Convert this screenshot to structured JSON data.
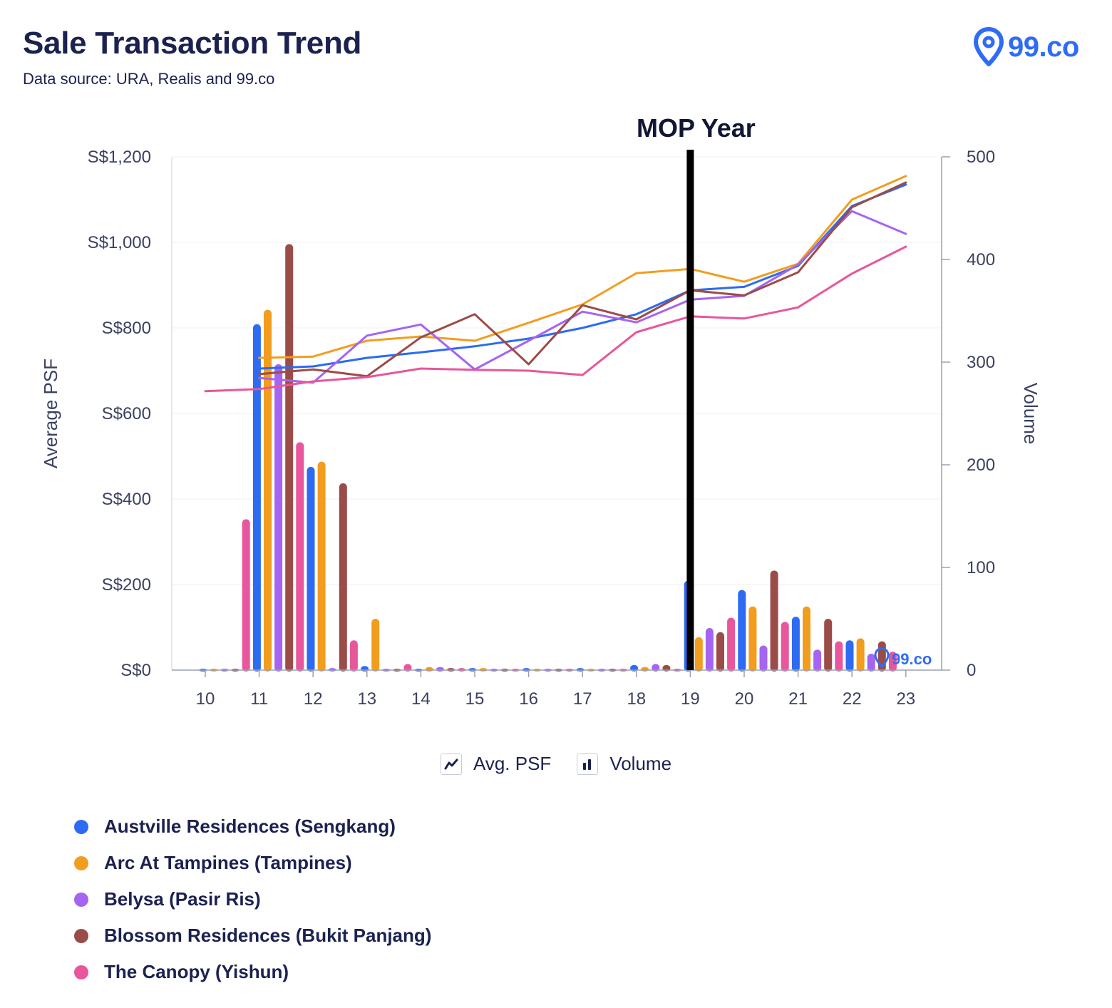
{
  "header": {
    "title": "Sale Transaction Trend",
    "subtitle": "Data source: URA, Realis and 99.co",
    "brand": "99.co",
    "watermark": "99.co"
  },
  "legend": {
    "psf_label": "Avg. PSF",
    "volume_label": "Volume"
  },
  "chart_data": {
    "type": "bar",
    "annotation": "MOP Year",
    "annotation_x": "19",
    "categories": [
      "10",
      "11",
      "12",
      "13",
      "14",
      "15",
      "16",
      "17",
      "18",
      "19",
      "20",
      "21",
      "22",
      "23"
    ],
    "y_left": {
      "label": "Average PSF",
      "ticks": [
        "S$0",
        "S$200",
        "S$400",
        "S$600",
        "S$800",
        "S$1,000",
        "S$1,200"
      ],
      "range": [
        0,
        1200
      ]
    },
    "y_right": {
      "label": "Volume",
      "ticks": [
        "0",
        "100",
        "200",
        "300",
        "400",
        "500"
      ],
      "range": [
        0,
        500
      ]
    },
    "grid": true,
    "series": [
      {
        "name": "Austville Residences (Sengkang)",
        "color": "#2c6bf2",
        "volume": [
          0,
          337,
          198,
          4,
          0,
          2,
          2,
          2,
          5,
          87,
          78,
          52,
          29,
          null
        ],
        "psf": [
          null,
          705,
          710,
          730,
          743,
          757,
          775,
          800,
          832,
          888,
          896,
          945,
          1085,
          1135
        ]
      },
      {
        "name": "Arc At Tampines (Tampines)",
        "color": "#f29d1e",
        "volume": [
          0,
          351,
          203,
          50,
          3,
          2,
          0,
          1,
          3,
          32,
          62,
          62,
          31,
          null
        ],
        "psf": [
          null,
          730,
          733,
          770,
          780,
          770,
          812,
          855,
          928,
          938,
          908,
          950,
          1100,
          1155
        ]
      },
      {
        "name": "Belysa (Pasir Ris)",
        "color": "#a564f1",
        "volume": [
          0,
          298,
          2,
          1,
          3,
          1,
          0,
          1,
          6,
          41,
          24,
          20,
          16,
          null
        ],
        "psf": [
          null,
          683,
          672,
          782,
          808,
          703,
          770,
          838,
          813,
          866,
          875,
          948,
          1073,
          1020
        ]
      },
      {
        "name": "Blossom Residences (Bukit Panjang)",
        "color": "#9c4c48",
        "volume": [
          0,
          415,
          182,
          1,
          2,
          1,
          1,
          1,
          5,
          37,
          97,
          50,
          28,
          null
        ],
        "psf": [
          null,
          692,
          703,
          687,
          778,
          832,
          715,
          853,
          820,
          888,
          876,
          930,
          1082,
          1140
        ]
      },
      {
        "name": "The Canopy (Yishun)",
        "color": "#e8569b",
        "volume": [
          147,
          222,
          29,
          6,
          2,
          1,
          1,
          1,
          1,
          51,
          47,
          28,
          18,
          null
        ],
        "psf": [
          652,
          657,
          675,
          685,
          705,
          702,
          700,
          690,
          790,
          827,
          822,
          848,
          927,
          990
        ]
      }
    ]
  }
}
